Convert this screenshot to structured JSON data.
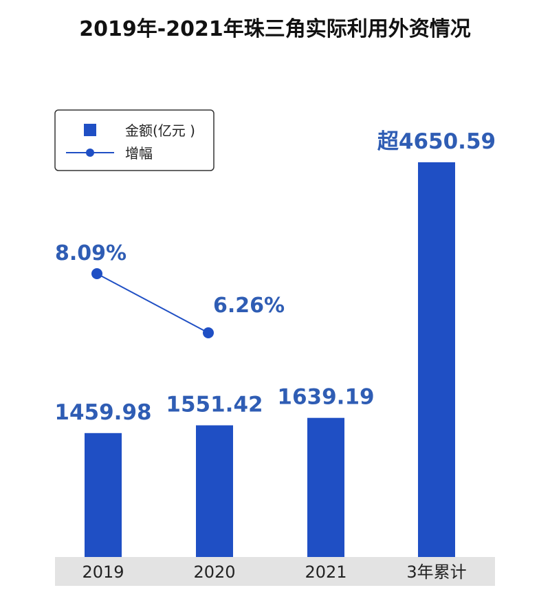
{
  "chart_data": {
    "type": "bar",
    "title": "2019年-2021年珠三角实际利用外资情况",
    "categories": [
      "2019",
      "2020",
      "2021",
      "3年累计"
    ],
    "series": [
      {
        "name": "金额(亿元 )",
        "type": "bar",
        "values": [
          1459.98,
          1551.42,
          1639.19,
          4650.59
        ],
        "labels": [
          "1459.98",
          "1551.42",
          "1639.19",
          "超4650.59"
        ]
      },
      {
        "name": "增幅",
        "type": "line",
        "values": [
          8.09,
          6.26,
          null,
          null
        ],
        "labels": [
          "8.09%",
          "6.26%",
          "",
          ""
        ]
      }
    ],
    "legend_position": "top-left",
    "grid": false,
    "colors": {
      "bar": "#1f4fc4",
      "line": "#1f4fc4",
      "label": "#2f5db4",
      "axis_band": "#e3e3e3"
    }
  }
}
